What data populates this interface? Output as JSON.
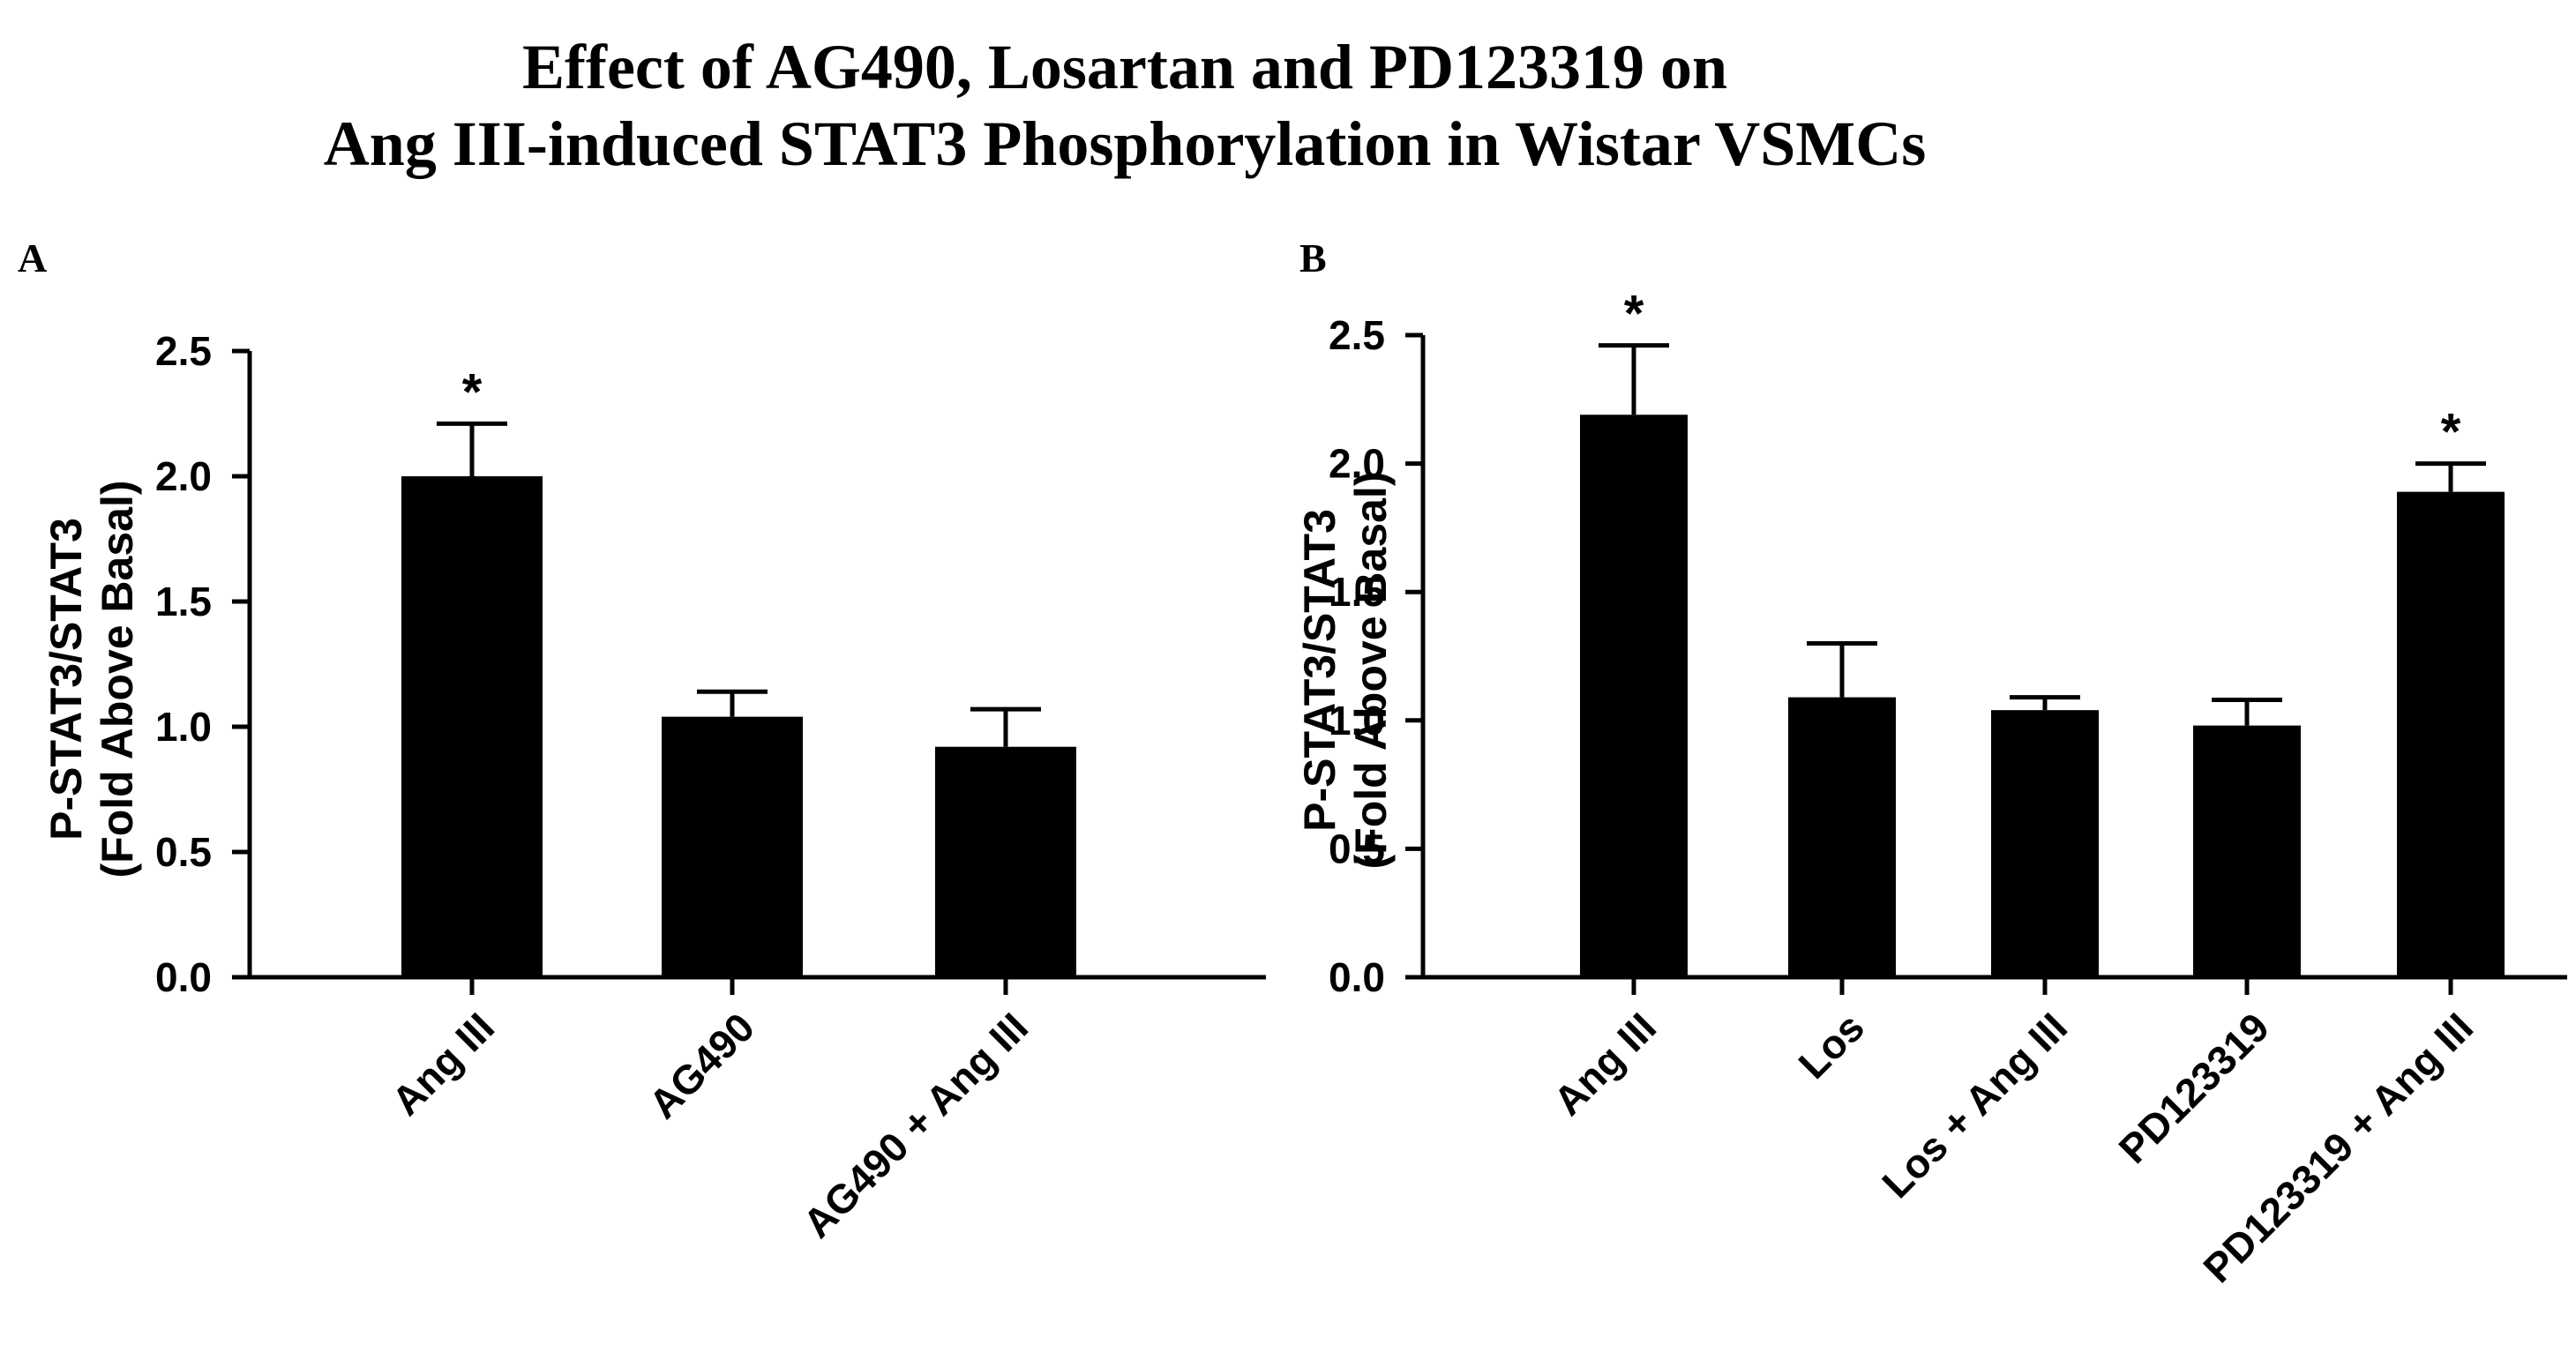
{
  "figure": {
    "title_line1": "Effect of AG490, Losartan and PD123319 on",
    "title_line2": "Ang III-induced  STAT3 Phosphorylation in Wistar VSMCs"
  },
  "colors": {
    "bar": "#000000",
    "axis": "#000000",
    "background": "#ffffff"
  },
  "chart_data": [
    {
      "panel": "A",
      "type": "bar",
      "categories": [
        "Ang III",
        "AG490",
        "AG490 + Ang III"
      ],
      "values": [
        2.0,
        1.04,
        0.92
      ],
      "errors": [
        0.21,
        0.1,
        0.15
      ],
      "significance": [
        "*",
        "",
        ""
      ],
      "ylabel_line1": "P-STAT3/STAT3",
      "ylabel_line2": "(Fold Above Basal)",
      "xlabel": "",
      "ylim": [
        0,
        2.5
      ],
      "yticks": [
        "0.0",
        "0.5",
        "1.0",
        "1.5",
        "2.0",
        "2.5"
      ],
      "grid": false,
      "legend": "none"
    },
    {
      "panel": "B",
      "type": "bar",
      "categories": [
        "Ang III",
        "Los",
        "Los + Ang III",
        "PD123319",
        "PD123319 + Ang III"
      ],
      "values": [
        2.19,
        1.09,
        1.04,
        0.98,
        1.89
      ],
      "errors": [
        0.27,
        0.21,
        0.05,
        0.1,
        0.11
      ],
      "significance": [
        "*",
        "",
        "",
        "",
        "*"
      ],
      "ylabel_line1": "P-STAT3/STAT3",
      "ylabel_line2": "(Fold  Above Basal)",
      "xlabel": "",
      "ylim": [
        0,
        2.5
      ],
      "yticks": [
        "0.0",
        "0.5",
        "1.0",
        "1.5",
        "2.0",
        "2.5"
      ],
      "grid": false,
      "legend": "none"
    }
  ]
}
